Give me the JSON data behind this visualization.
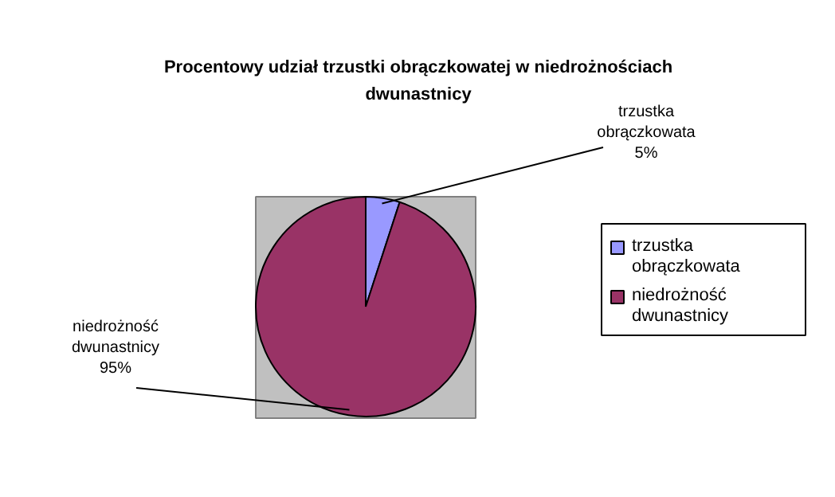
{
  "chart_data": {
    "type": "pie",
    "title": "Procentowy udział trzustki obrączkowatej w niedrożnościach dwunastnicy",
    "categories": [
      "trzustka obrączkowata",
      "niedrożność dwunastnicy"
    ],
    "values": [
      5,
      95
    ],
    "colors": [
      "#9999ff",
      "#993366"
    ],
    "value_labels": [
      "5%",
      "95%"
    ],
    "legend": "right"
  }
}
